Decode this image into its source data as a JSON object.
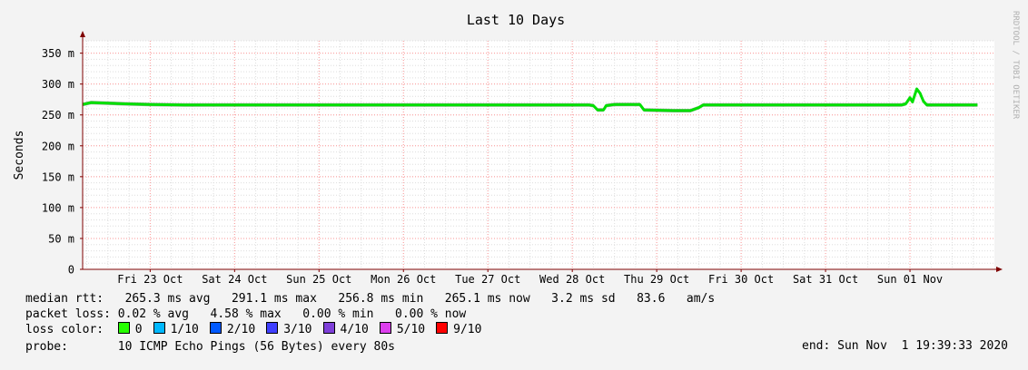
{
  "chart_data": {
    "type": "line",
    "title": "Last 10 Days",
    "ylabel": "Seconds",
    "xlabel": "",
    "ylim": [
      0,
      0.37
    ],
    "yticks": [
      {
        "value": 0,
        "label": "0"
      },
      {
        "value": 0.05,
        "label": "50 m"
      },
      {
        "value": 0.1,
        "label": "100 m"
      },
      {
        "value": 0.15,
        "label": "150 m"
      },
      {
        "value": 0.2,
        "label": "200 m"
      },
      {
        "value": 0.25,
        "label": "250 m"
      },
      {
        "value": 0.3,
        "label": "300 m"
      },
      {
        "value": 0.35,
        "label": "350 m"
      }
    ],
    "xlim": [
      0,
      10.8
    ],
    "xticks": [
      {
        "value": 0.8,
        "label": "Fri 23 Oct"
      },
      {
        "value": 1.8,
        "label": "Sat 24 Oct"
      },
      {
        "value": 2.8,
        "label": "Sun 25 Oct"
      },
      {
        "value": 3.8,
        "label": "Mon 26 Oct"
      },
      {
        "value": 4.8,
        "label": "Tue 27 Oct"
      },
      {
        "value": 5.8,
        "label": "Wed 28 Oct"
      },
      {
        "value": 6.8,
        "label": "Thu 29 Oct"
      },
      {
        "value": 7.8,
        "label": "Fri 30 Oct"
      },
      {
        "value": 8.8,
        "label": "Sat 31 Oct"
      },
      {
        "value": 9.8,
        "label": "Sun 01 Nov"
      }
    ],
    "grid": true,
    "series": [
      {
        "color": "#00e000",
        "points": [
          [
            0.0,
            0.267
          ],
          [
            0.1,
            0.27
          ],
          [
            0.5,
            0.268
          ],
          [
            0.8,
            0.267
          ],
          [
            1.2,
            0.266
          ],
          [
            2.0,
            0.266
          ],
          [
            3.0,
            0.266
          ],
          [
            4.0,
            0.266
          ],
          [
            5.0,
            0.266
          ],
          [
            6.0,
            0.266
          ],
          [
            6.05,
            0.265
          ],
          [
            6.1,
            0.258
          ],
          [
            6.17,
            0.258
          ],
          [
            6.2,
            0.265
          ],
          [
            6.3,
            0.267
          ],
          [
            6.6,
            0.267
          ],
          [
            6.65,
            0.258
          ],
          [
            7.0,
            0.257
          ],
          [
            7.2,
            0.257
          ],
          [
            7.3,
            0.262
          ],
          [
            7.35,
            0.266
          ],
          [
            8.0,
            0.266
          ],
          [
            9.0,
            0.266
          ],
          [
            9.7,
            0.266
          ],
          [
            9.75,
            0.268
          ],
          [
            9.8,
            0.278
          ],
          [
            9.83,
            0.271
          ],
          [
            9.88,
            0.292
          ],
          [
            9.92,
            0.285
          ],
          [
            9.96,
            0.272
          ],
          [
            10.0,
            0.266
          ],
          [
            10.6,
            0.266
          ]
        ]
      }
    ]
  },
  "colors": {
    "background": "#f3f3f3",
    "plot": "#ffffff",
    "grid_minor": "#dddddd",
    "grid_major": "#ff9999",
    "axis": "#7f0000",
    "smoke": "#555555"
  },
  "credit": "RRDTOOL / TOBI OETIKER",
  "legend": {
    "median_rtt": "median rtt:   265.3 ms avg   291.1 ms max   256.8 ms min   265.1 ms now   3.2 ms sd   83.6   am/s",
    "packet_loss": "packet loss: 0.02 % avg   4.58 % max   0.00 % min   0.00 % now",
    "loss_color_label": "loss color:  ",
    "loss_colors": [
      {
        "label": "0",
        "color": "#26ff00"
      },
      {
        "label": "1/10",
        "color": "#00b8ff"
      },
      {
        "label": "2/10",
        "color": "#0059ff"
      },
      {
        "label": "3/10",
        "color": "#3f3fff"
      },
      {
        "label": "4/10",
        "color": "#7e3fd8"
      },
      {
        "label": "5/10",
        "color": "#dd3fee"
      },
      {
        "label": "9/10",
        "color": "#ff0000"
      }
    ],
    "probe": "probe:       10 ICMP Echo Pings (56 Bytes) every 80s",
    "end": "end: Sun Nov  1 19:39:33 2020"
  }
}
